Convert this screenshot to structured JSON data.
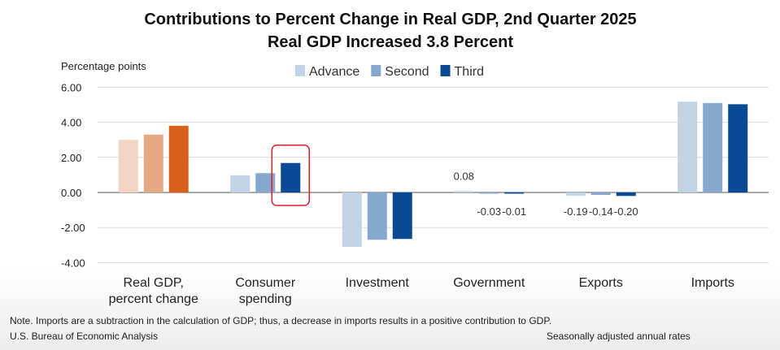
{
  "chart_data": {
    "type": "bar",
    "title": "Contributions to Percent Change in Real GDP, 2nd Quarter 2025",
    "subtitle": "Real GDP Increased 3.8 Percent",
    "ylabel": "Percentage points",
    "ylim": [
      -4,
      6
    ],
    "yticks": [
      "6.00",
      "4.00",
      "2.00",
      "0.00",
      "-2.00",
      "-4.00"
    ],
    "ytick_values": [
      6,
      4,
      2,
      0,
      -2,
      -4
    ],
    "grid": true,
    "legend_position": "top-center",
    "categories": [
      [
        "Real GDP,",
        "percent change"
      ],
      [
        "Consumer",
        "spending"
      ],
      [
        "Investment"
      ],
      [
        "Government"
      ],
      [
        "Exports"
      ],
      [
        "Imports"
      ]
    ],
    "series": [
      {
        "name": "Advance",
        "color": "#c3d3e6",
        "values": [
          3.0,
          0.98,
          -3.1,
          0.08,
          -0.19,
          5.18
        ]
      },
      {
        "name": "Second",
        "color": "#86a8cf",
        "values": [
          3.3,
          1.1,
          -2.7,
          -0.03,
          -0.14,
          5.1
        ]
      },
      {
        "name": "Third",
        "color": "#0a4a94",
        "values": [
          3.8,
          1.68,
          -2.65,
          -0.01,
          -0.2,
          5.03
        ]
      }
    ],
    "first_category_colors": [
      "#f3d3c1",
      "#e6a983",
      "#d9601a"
    ],
    "data_labels": [
      {
        "category": 3,
        "series": 0,
        "text": "0.08"
      },
      {
        "category": 3,
        "series": 1,
        "text": "-0.03"
      },
      {
        "category": 3,
        "series": 2,
        "text": "-0.01"
      },
      {
        "category": 4,
        "series": 0,
        "text": "-0.19"
      },
      {
        "category": 4,
        "series": 1,
        "text": "-0.14"
      },
      {
        "category": 4,
        "series": 2,
        "text": "-0.20"
      }
    ],
    "highlight": {
      "category": 1,
      "series": 2,
      "color": "#e0202a"
    },
    "note": "Note. Imports are a subtraction in the calculation of GDP; thus, a decrease in imports results in a positive contribution to GDP.",
    "source": "U.S. Bureau of Economic Analysis",
    "rate_note": "Seasonally adjusted annual rates"
  }
}
